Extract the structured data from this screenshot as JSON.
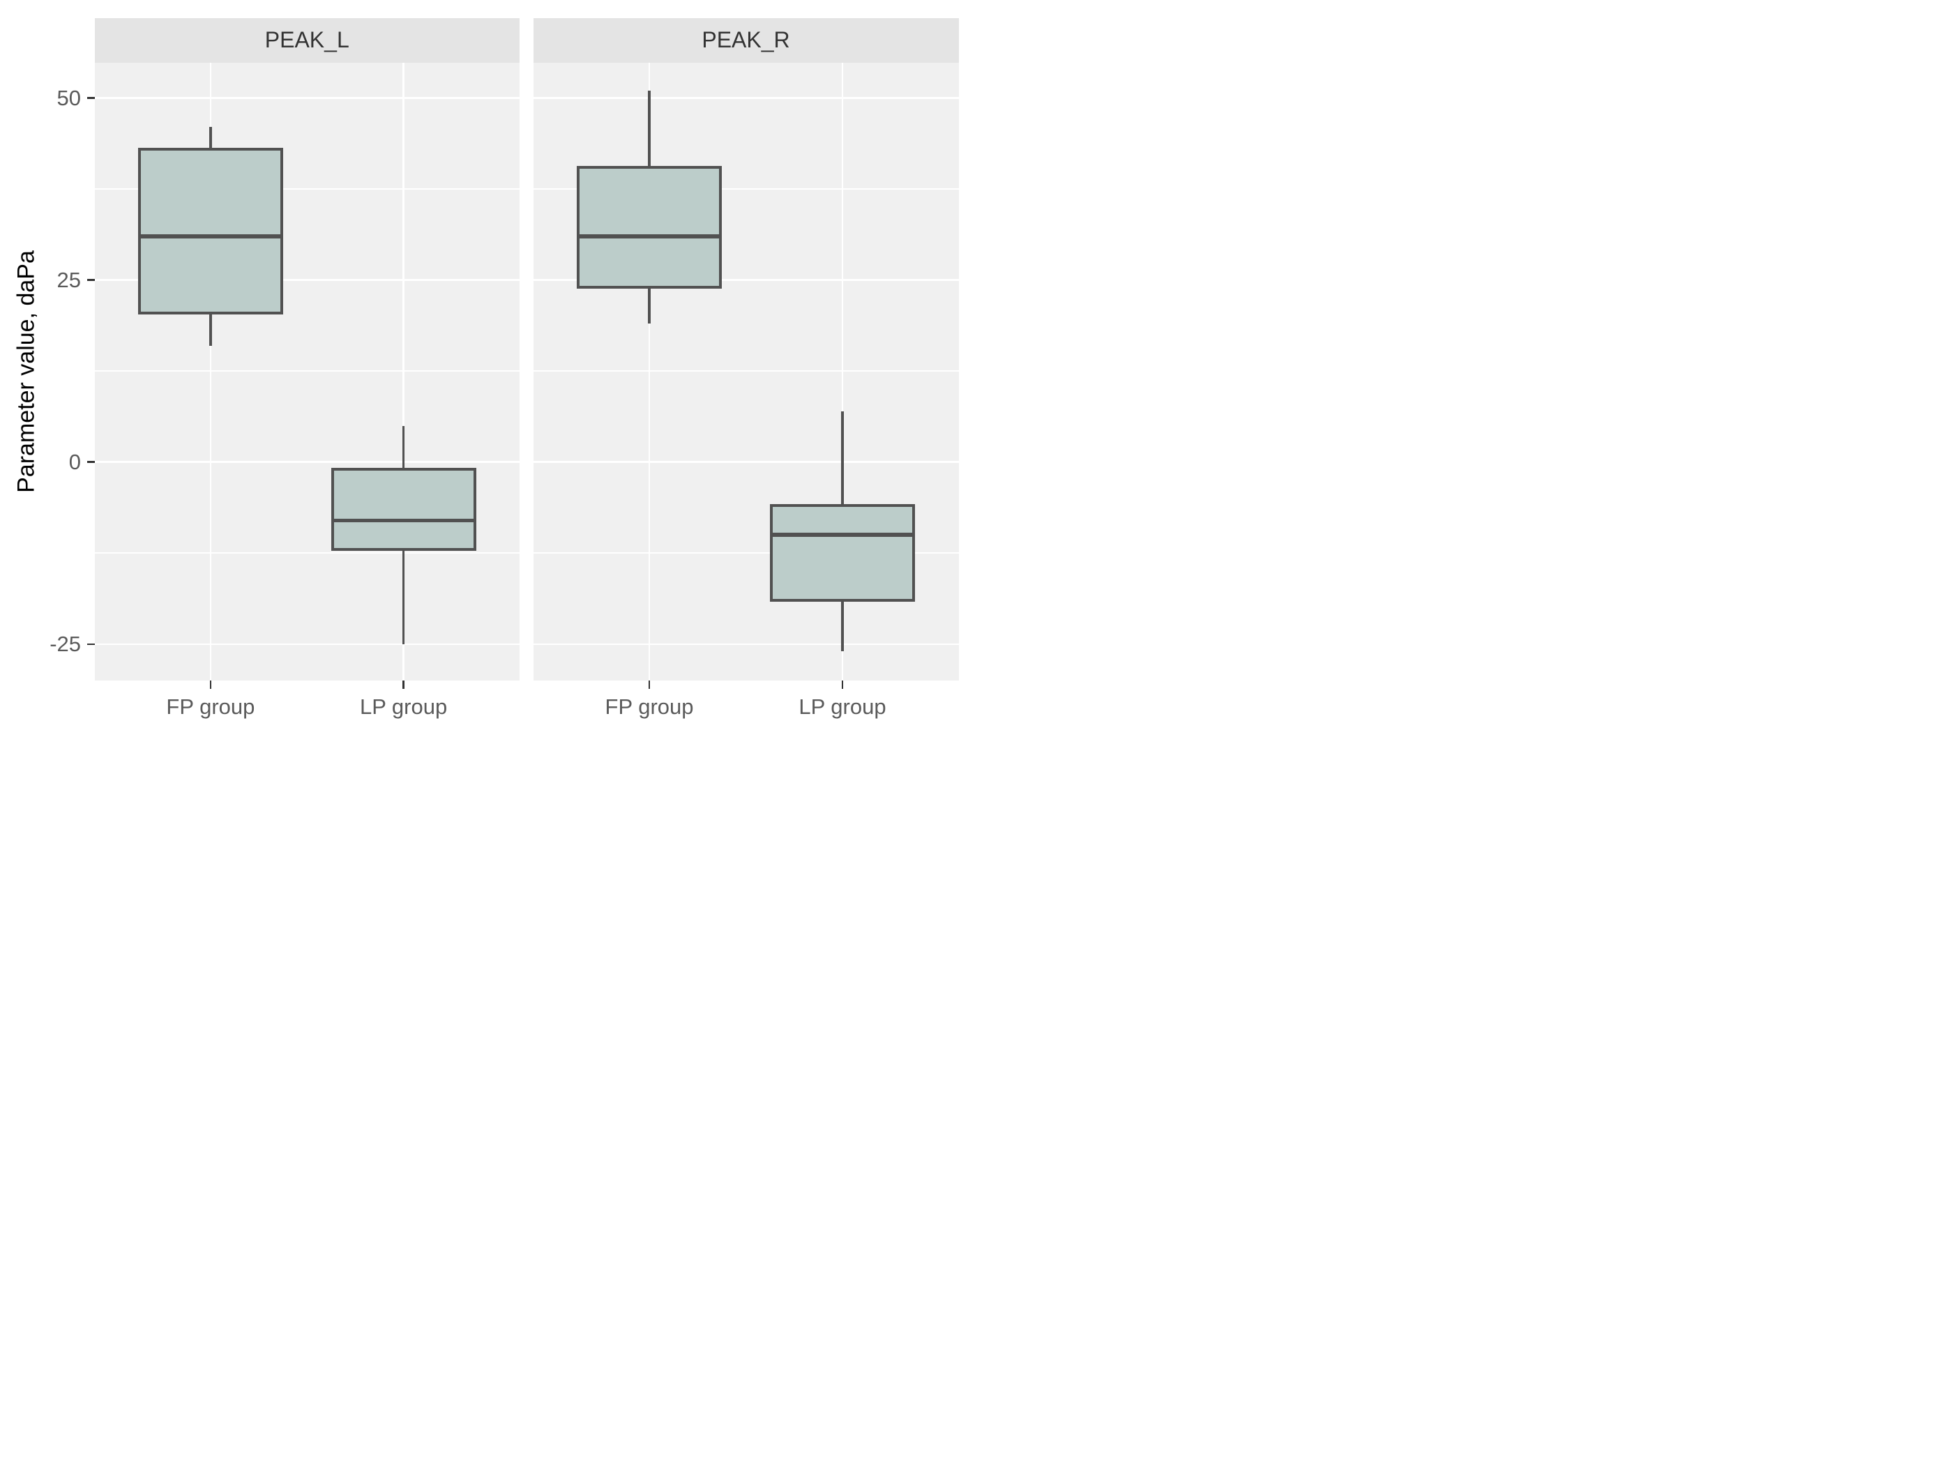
{
  "chart_data": {
    "type": "boxplot",
    "title": "",
    "xlabel": "",
    "ylabel": "Parameter value, daPa",
    "y_ticks": [
      {
        "label": "50",
        "value": 50
      },
      {
        "label": "25",
        "value": 25
      },
      {
        "label": "0",
        "value": 0
      },
      {
        "label": "-25",
        "value": -25
      }
    ],
    "y_minor_tick_values": [
      37.5,
      12.5,
      -12.5
    ],
    "ylim": [
      -30,
      54.9
    ],
    "grid": "white major and minor gridlines on gray panel background",
    "legend_position": "none",
    "facets": [
      {
        "label": "PEAK_L",
        "groups": [
          {
            "label": "FP group",
            "whisker_low": 16,
            "q1": 20.5,
            "median": 31,
            "q3": 43,
            "whisker_high": 46
          },
          {
            "label": "LP group",
            "whisker_low": -25,
            "q1": -12,
            "median": -8,
            "q3": -1,
            "whisker_high": 5
          }
        ]
      },
      {
        "label": "PEAK_R",
        "groups": [
          {
            "label": "FP group",
            "whisker_low": 19,
            "q1": 24,
            "median": 31,
            "q3": 40.5,
            "whisker_high": 51
          },
          {
            "label": "LP group",
            "whisker_low": -26,
            "q1": -19,
            "median": -10,
            "q3": -6,
            "whisker_high": 7
          }
        ]
      }
    ]
  },
  "colors": {
    "background": "#ffffff",
    "panel_bg": "#f0f0f0",
    "strip_bg": "#e4e4e4",
    "strip_text": "#333333",
    "grid": "#ffffff",
    "box_fill": "#bccdca",
    "box_border": "#515151",
    "axis_text": "#5a5a5a",
    "tick_mark": "#333333",
    "axis_title": "#000000"
  }
}
